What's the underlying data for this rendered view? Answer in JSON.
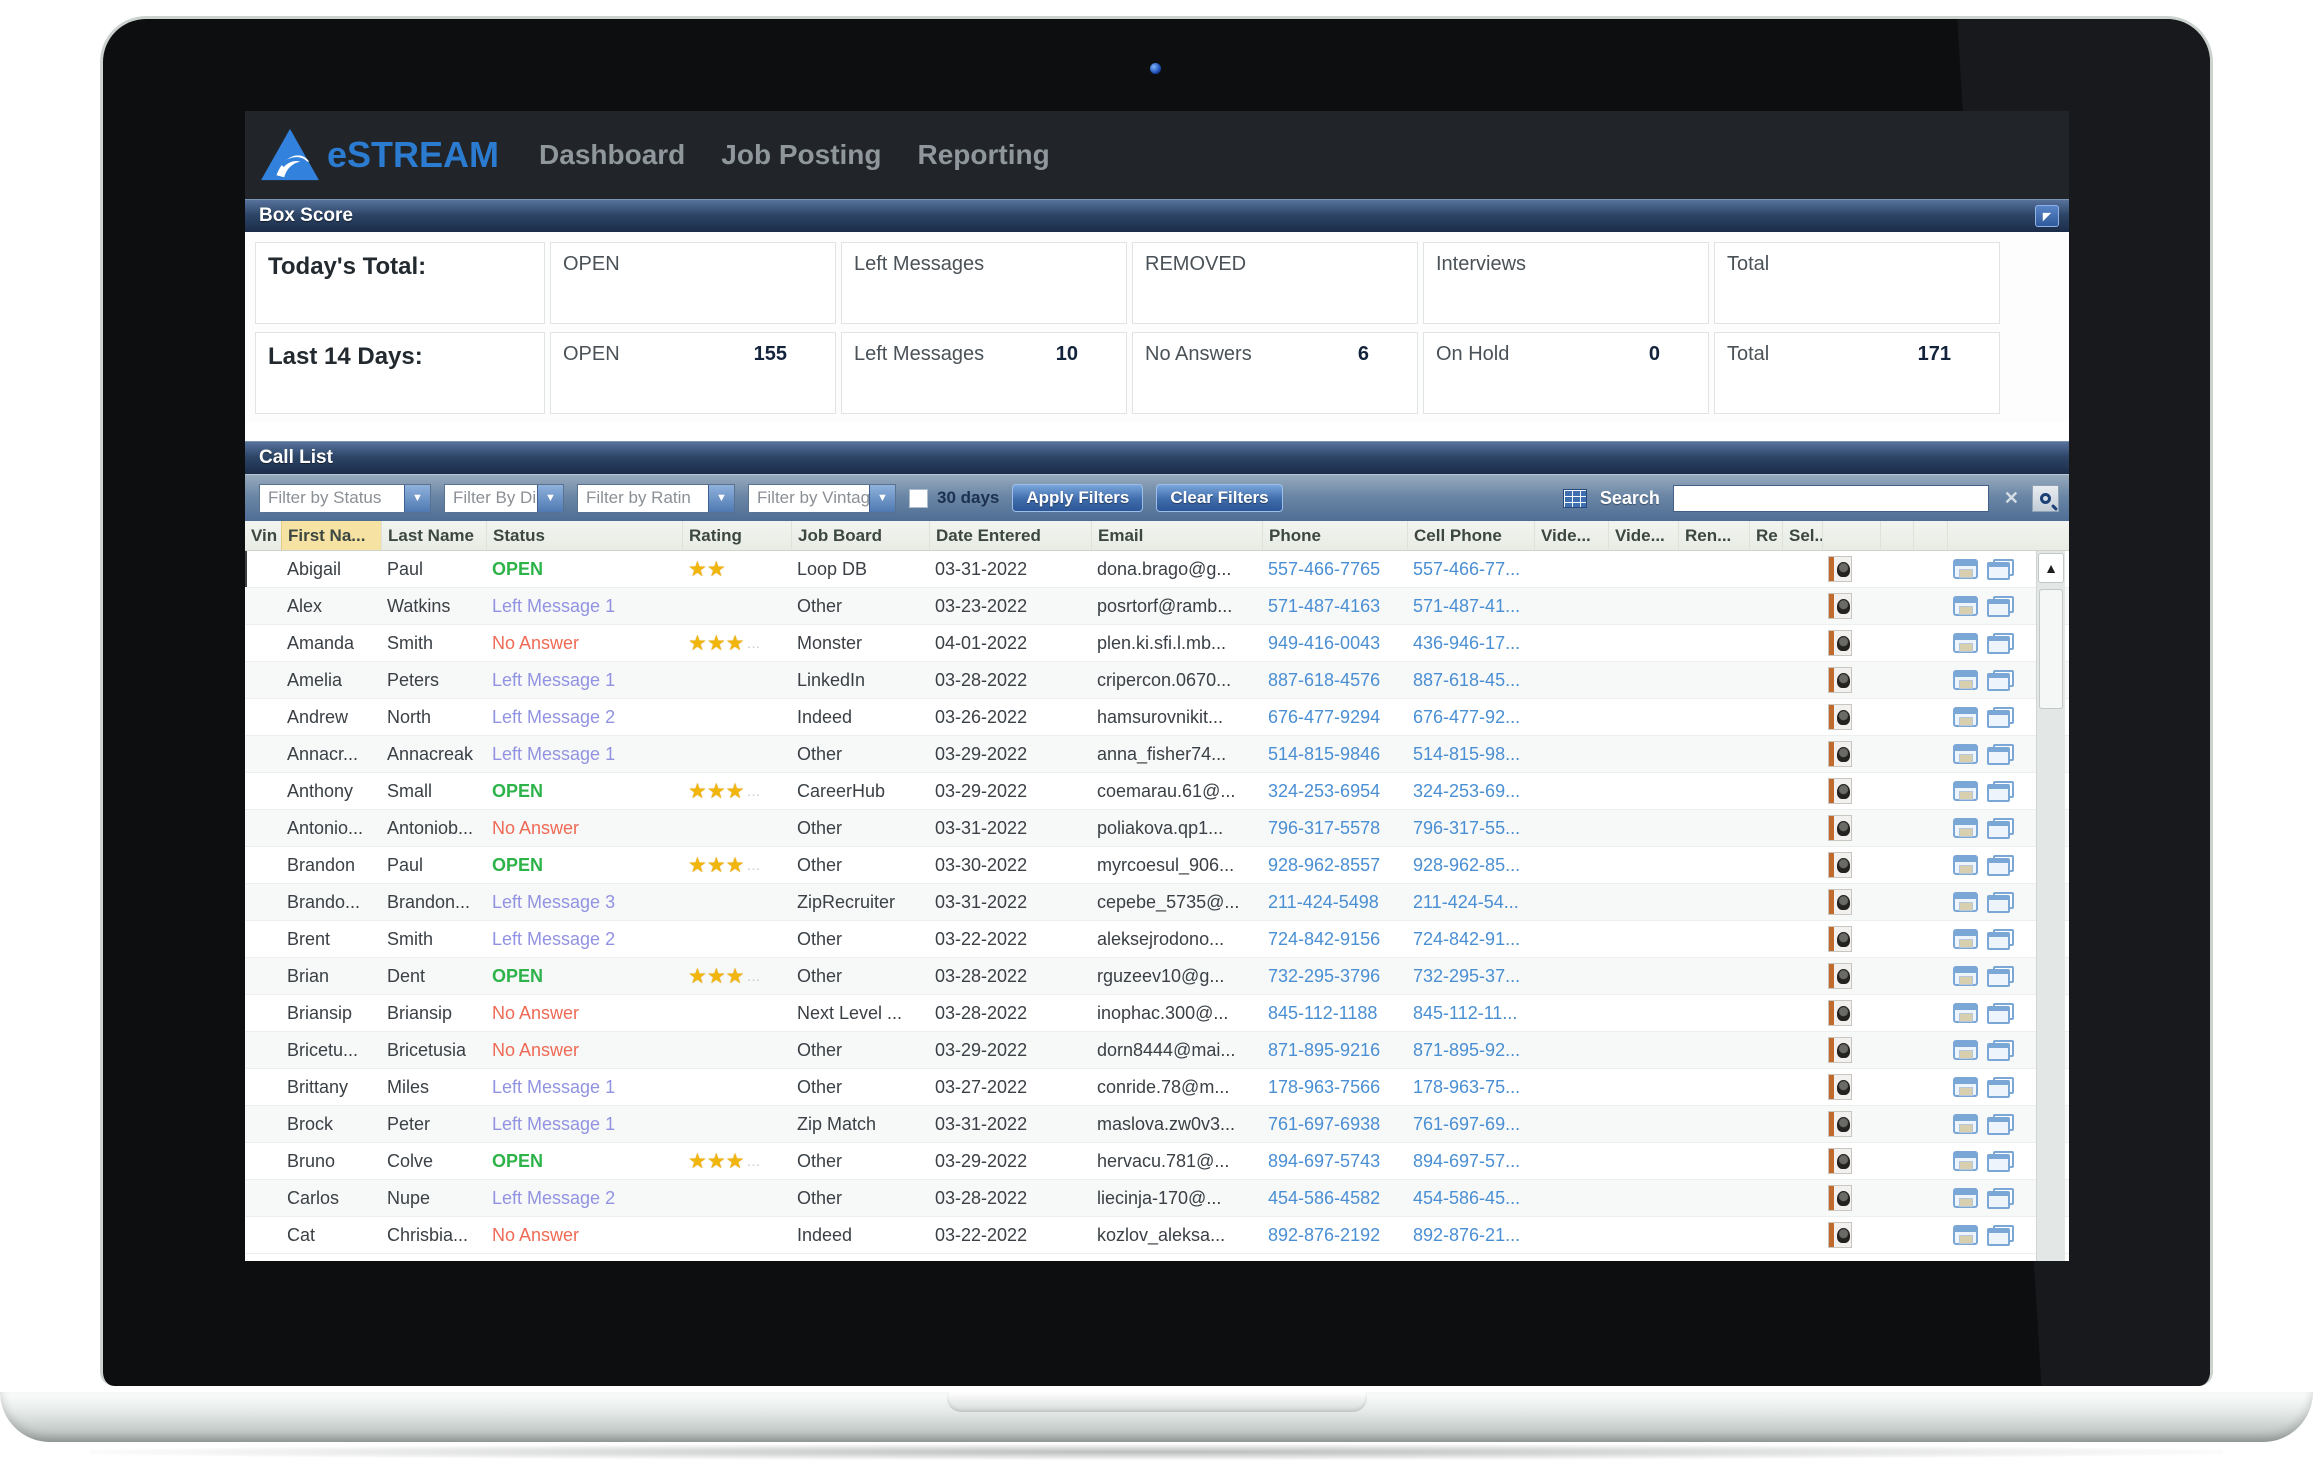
{
  "nav": {
    "brand": "eSTREAM",
    "items": [
      {
        "label": "Dashboard"
      },
      {
        "label": "Job Posting"
      },
      {
        "label": "Reporting"
      }
    ]
  },
  "box_score": {
    "title": "Box Score",
    "today": {
      "label": "Today's Total:",
      "cells": [
        {
          "name": "OPEN",
          "value": ""
        },
        {
          "name": "Left Messages",
          "value": ""
        },
        {
          "name": "REMOVED",
          "value": ""
        },
        {
          "name": "Interviews",
          "value": ""
        },
        {
          "name": "Total",
          "value": ""
        }
      ]
    },
    "last14": {
      "label": "Last 14 Days:",
      "cells": [
        {
          "name": "OPEN",
          "value": "155"
        },
        {
          "name": "Left Messages",
          "value": "10"
        },
        {
          "name": "No Answers",
          "value": "6"
        },
        {
          "name": "On Hold",
          "value": "0"
        },
        {
          "name": "Total",
          "value": "171"
        }
      ]
    }
  },
  "call_list": {
    "title": "Call List",
    "filters": [
      {
        "label": "Filter by Status"
      },
      {
        "label": "Filter By Di"
      },
      {
        "label": "Filter by Ratin"
      },
      {
        "label": "Filter by Vintag"
      }
    ],
    "days_label": "30 days",
    "apply_label": "Apply Filters",
    "clear_label": "Clear Filters",
    "search_label": "Search",
    "search_value": "",
    "columns": [
      "Vin",
      "First Na...",
      "Last Name",
      "Status",
      "Rating",
      "Job Board",
      "Date Entered",
      "Email",
      "Phone",
      "Cell Phone",
      "Vide...",
      "Vide...",
      "Ren...",
      "Re",
      "Sel..."
    ],
    "rows": [
      {
        "first": "Abigail",
        "last": "Paul",
        "status": "OPEN",
        "status_type": "open",
        "stars": 2,
        "more": false,
        "job_board": "Loop DB",
        "date": "03-31-2022",
        "email": "dona.brago@g...",
        "phone": "557-466-7765",
        "cell": "557-466-77..."
      },
      {
        "first": "Alex",
        "last": "Watkins",
        "status": "Left Message 1",
        "status_type": "left",
        "stars": 0,
        "more": false,
        "job_board": "Other",
        "date": "03-23-2022",
        "email": "posrtorf@ramb...",
        "phone": "571-487-4163",
        "cell": "571-487-41..."
      },
      {
        "first": "Amanda",
        "last": "Smith",
        "status": "No Answer",
        "status_type": "noans",
        "stars": 3,
        "more": true,
        "job_board": "Monster",
        "date": "04-01-2022",
        "email": "plen.ki.sfi.l.mb...",
        "phone": "949-416-0043",
        "cell": "436-946-17..."
      },
      {
        "first": "Amelia",
        "last": "Peters",
        "status": "Left Message 1",
        "status_type": "left",
        "stars": 0,
        "more": false,
        "job_board": "LinkedIn",
        "date": "03-28-2022",
        "email": "cripercon.0670...",
        "phone": "887-618-4576",
        "cell": "887-618-45..."
      },
      {
        "first": "Andrew",
        "last": "North",
        "status": "Left Message 2",
        "status_type": "left",
        "stars": 0,
        "more": false,
        "job_board": "Indeed",
        "date": "03-26-2022",
        "email": "hamsurovnikit...",
        "phone": "676-477-9294",
        "cell": "676-477-92..."
      },
      {
        "first": "Annacr...",
        "last": "Annacreak",
        "status": "Left Message 1",
        "status_type": "left",
        "stars": 0,
        "more": false,
        "job_board": "Other",
        "date": "03-29-2022",
        "email": "anna_fisher74...",
        "phone": "514-815-9846",
        "cell": "514-815-98..."
      },
      {
        "first": "Anthony",
        "last": "Small",
        "status": "OPEN",
        "status_type": "open",
        "stars": 3,
        "more": true,
        "job_board": "CareerHub",
        "date": "03-29-2022",
        "email": "coemarau.61@...",
        "phone": "324-253-6954",
        "cell": "324-253-69..."
      },
      {
        "first": "Antonio...",
        "last": "Antoniob...",
        "status": "No Answer",
        "status_type": "noans",
        "stars": 0,
        "more": false,
        "job_board": "Other",
        "date": "03-31-2022",
        "email": "poliakova.qp1...",
        "phone": "796-317-5578",
        "cell": "796-317-55..."
      },
      {
        "first": "Brandon",
        "last": "Paul",
        "status": "OPEN",
        "status_type": "open",
        "stars": 3,
        "more": true,
        "job_board": "Other",
        "date": "03-30-2022",
        "email": "myrcoesul_906...",
        "phone": "928-962-8557",
        "cell": "928-962-85..."
      },
      {
        "first": "Brando...",
        "last": "Brandon...",
        "status": "Left Message 3",
        "status_type": "left",
        "stars": 0,
        "more": false,
        "job_board": "ZipRecruiter",
        "date": "03-31-2022",
        "email": "cepebe_5735@...",
        "phone": "211-424-5498",
        "cell": "211-424-54..."
      },
      {
        "first": "Brent",
        "last": "Smith",
        "status": "Left Message 2",
        "status_type": "left",
        "stars": 0,
        "more": false,
        "job_board": "Other",
        "date": "03-22-2022",
        "email": "aleksejrodono...",
        "phone": "724-842-9156",
        "cell": "724-842-91..."
      },
      {
        "first": "Brian",
        "last": "Dent",
        "status": "OPEN",
        "status_type": "open",
        "stars": 3,
        "more": true,
        "job_board": "Other",
        "date": "03-28-2022",
        "email": "rguzeev10@g...",
        "phone": "732-295-3796",
        "cell": "732-295-37..."
      },
      {
        "first": "Briansip",
        "last": "Briansip",
        "status": "No Answer",
        "status_type": "noans",
        "stars": 0,
        "more": false,
        "job_board": "Next Level ...",
        "date": "03-28-2022",
        "email": "inophac.300@...",
        "phone": "845-112-1188",
        "cell": "845-112-11..."
      },
      {
        "first": "Bricetu...",
        "last": "Bricetusia",
        "status": "No Answer",
        "status_type": "noans",
        "stars": 0,
        "more": false,
        "job_board": "Other",
        "date": "03-29-2022",
        "email": "dorn8444@mai...",
        "phone": "871-895-9216",
        "cell": "871-895-92..."
      },
      {
        "first": "Brittany",
        "last": "Miles",
        "status": "Left Message 1",
        "status_type": "left",
        "stars": 0,
        "more": false,
        "job_board": "Other",
        "date": "03-27-2022",
        "email": "conride.78@m...",
        "phone": "178-963-7566",
        "cell": "178-963-75..."
      },
      {
        "first": "Brock",
        "last": "Peter",
        "status": "Left Message 1",
        "status_type": "left",
        "stars": 0,
        "more": false,
        "job_board": "Zip Match",
        "date": "03-31-2022",
        "email": "maslova.zw0v3...",
        "phone": "761-697-6938",
        "cell": "761-697-69..."
      },
      {
        "first": "Bruno",
        "last": "Colve",
        "status": "OPEN",
        "status_type": "open",
        "stars": 3,
        "more": true,
        "job_board": "Other",
        "date": "03-29-2022",
        "email": "hervacu.781@...",
        "phone": "894-697-5743",
        "cell": "894-697-57..."
      },
      {
        "first": "Carlos",
        "last": "Nupe",
        "status": "Left Message 2",
        "status_type": "left",
        "stars": 0,
        "more": false,
        "job_board": "Other",
        "date": "03-28-2022",
        "email": "liecinja-170@...",
        "phone": "454-586-4582",
        "cell": "454-586-45..."
      },
      {
        "first": "Cat",
        "last": "Chrisbia...",
        "status": "No Answer",
        "status_type": "noans",
        "stars": 0,
        "more": false,
        "job_board": "Indeed",
        "date": "03-22-2022",
        "email": "kozlov_aleksa...",
        "phone": "892-876-2192",
        "cell": "892-876-21..."
      }
    ]
  },
  "colors": {
    "brand_blue": "#2b7cd0",
    "status_open": "#2eb34a",
    "status_left_message": "#9193e2",
    "status_no_answer": "#ef6a55",
    "phone_link": "#4a8fd4",
    "star_gold": "#f2b50c",
    "panel_header": "#2e4668"
  }
}
